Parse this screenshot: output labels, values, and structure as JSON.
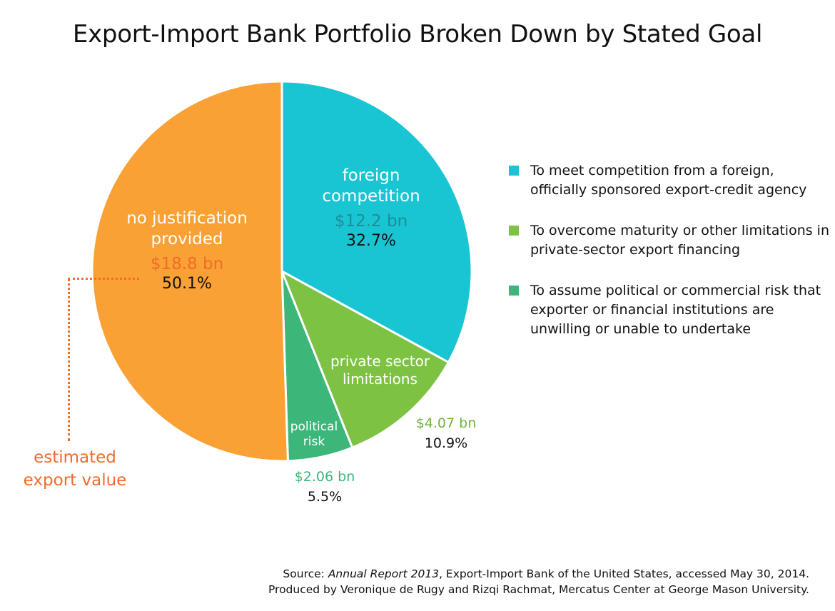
{
  "chart_data": {
    "type": "pie",
    "title": "Export-Import Bank Portfolio Broken Down by Stated Goal",
    "slices": [
      {
        "label": "foreign competition",
        "amount": "$12.2 bn",
        "percent": "32.7%",
        "value": 32.7,
        "color": "#19c5d3",
        "amount_color": "#1a8f9a"
      },
      {
        "label": "private sector limitations",
        "amount": "$4.07 bn",
        "percent": "10.9%",
        "value": 10.9,
        "color": "#7dc243",
        "amount_color": "#6fb43a"
      },
      {
        "label": "political risk",
        "amount": "$2.06 bn",
        "percent": "5.5%",
        "value": 5.5,
        "color": "#3db67a",
        "amount_color": "#3db67a"
      },
      {
        "label": "no justification provided",
        "amount": "$18.8 bn",
        "percent": "50.1%",
        "value": 50.1,
        "color": "#f9a135",
        "amount_color": "#f26b2a"
      }
    ],
    "legend": [
      {
        "text": "To meet competition from a foreign, officially sponsored export-credit agency",
        "color": "#19c5d3"
      },
      {
        "text": "To overcome maturity or other limitations in private-sector export financing",
        "color": "#7dc243"
      },
      {
        "text": "To assume political or commercial risk that exporter or financial institutions are unwilling or unable to undertake",
        "color": "#3db67a"
      }
    ],
    "legend_position": "right",
    "annotation": {
      "text": "estimated export value",
      "color": "#f26b2a"
    }
  },
  "source": {
    "prefix": "Source: ",
    "report": "Annual Report 2013",
    "rest": ", Export-Import Bank of the United States, accessed May 30, 2014.",
    "line2": "Produced by Veronique de Rugy and Rizqi Rachmat, Mercatus Center at George Mason University."
  }
}
